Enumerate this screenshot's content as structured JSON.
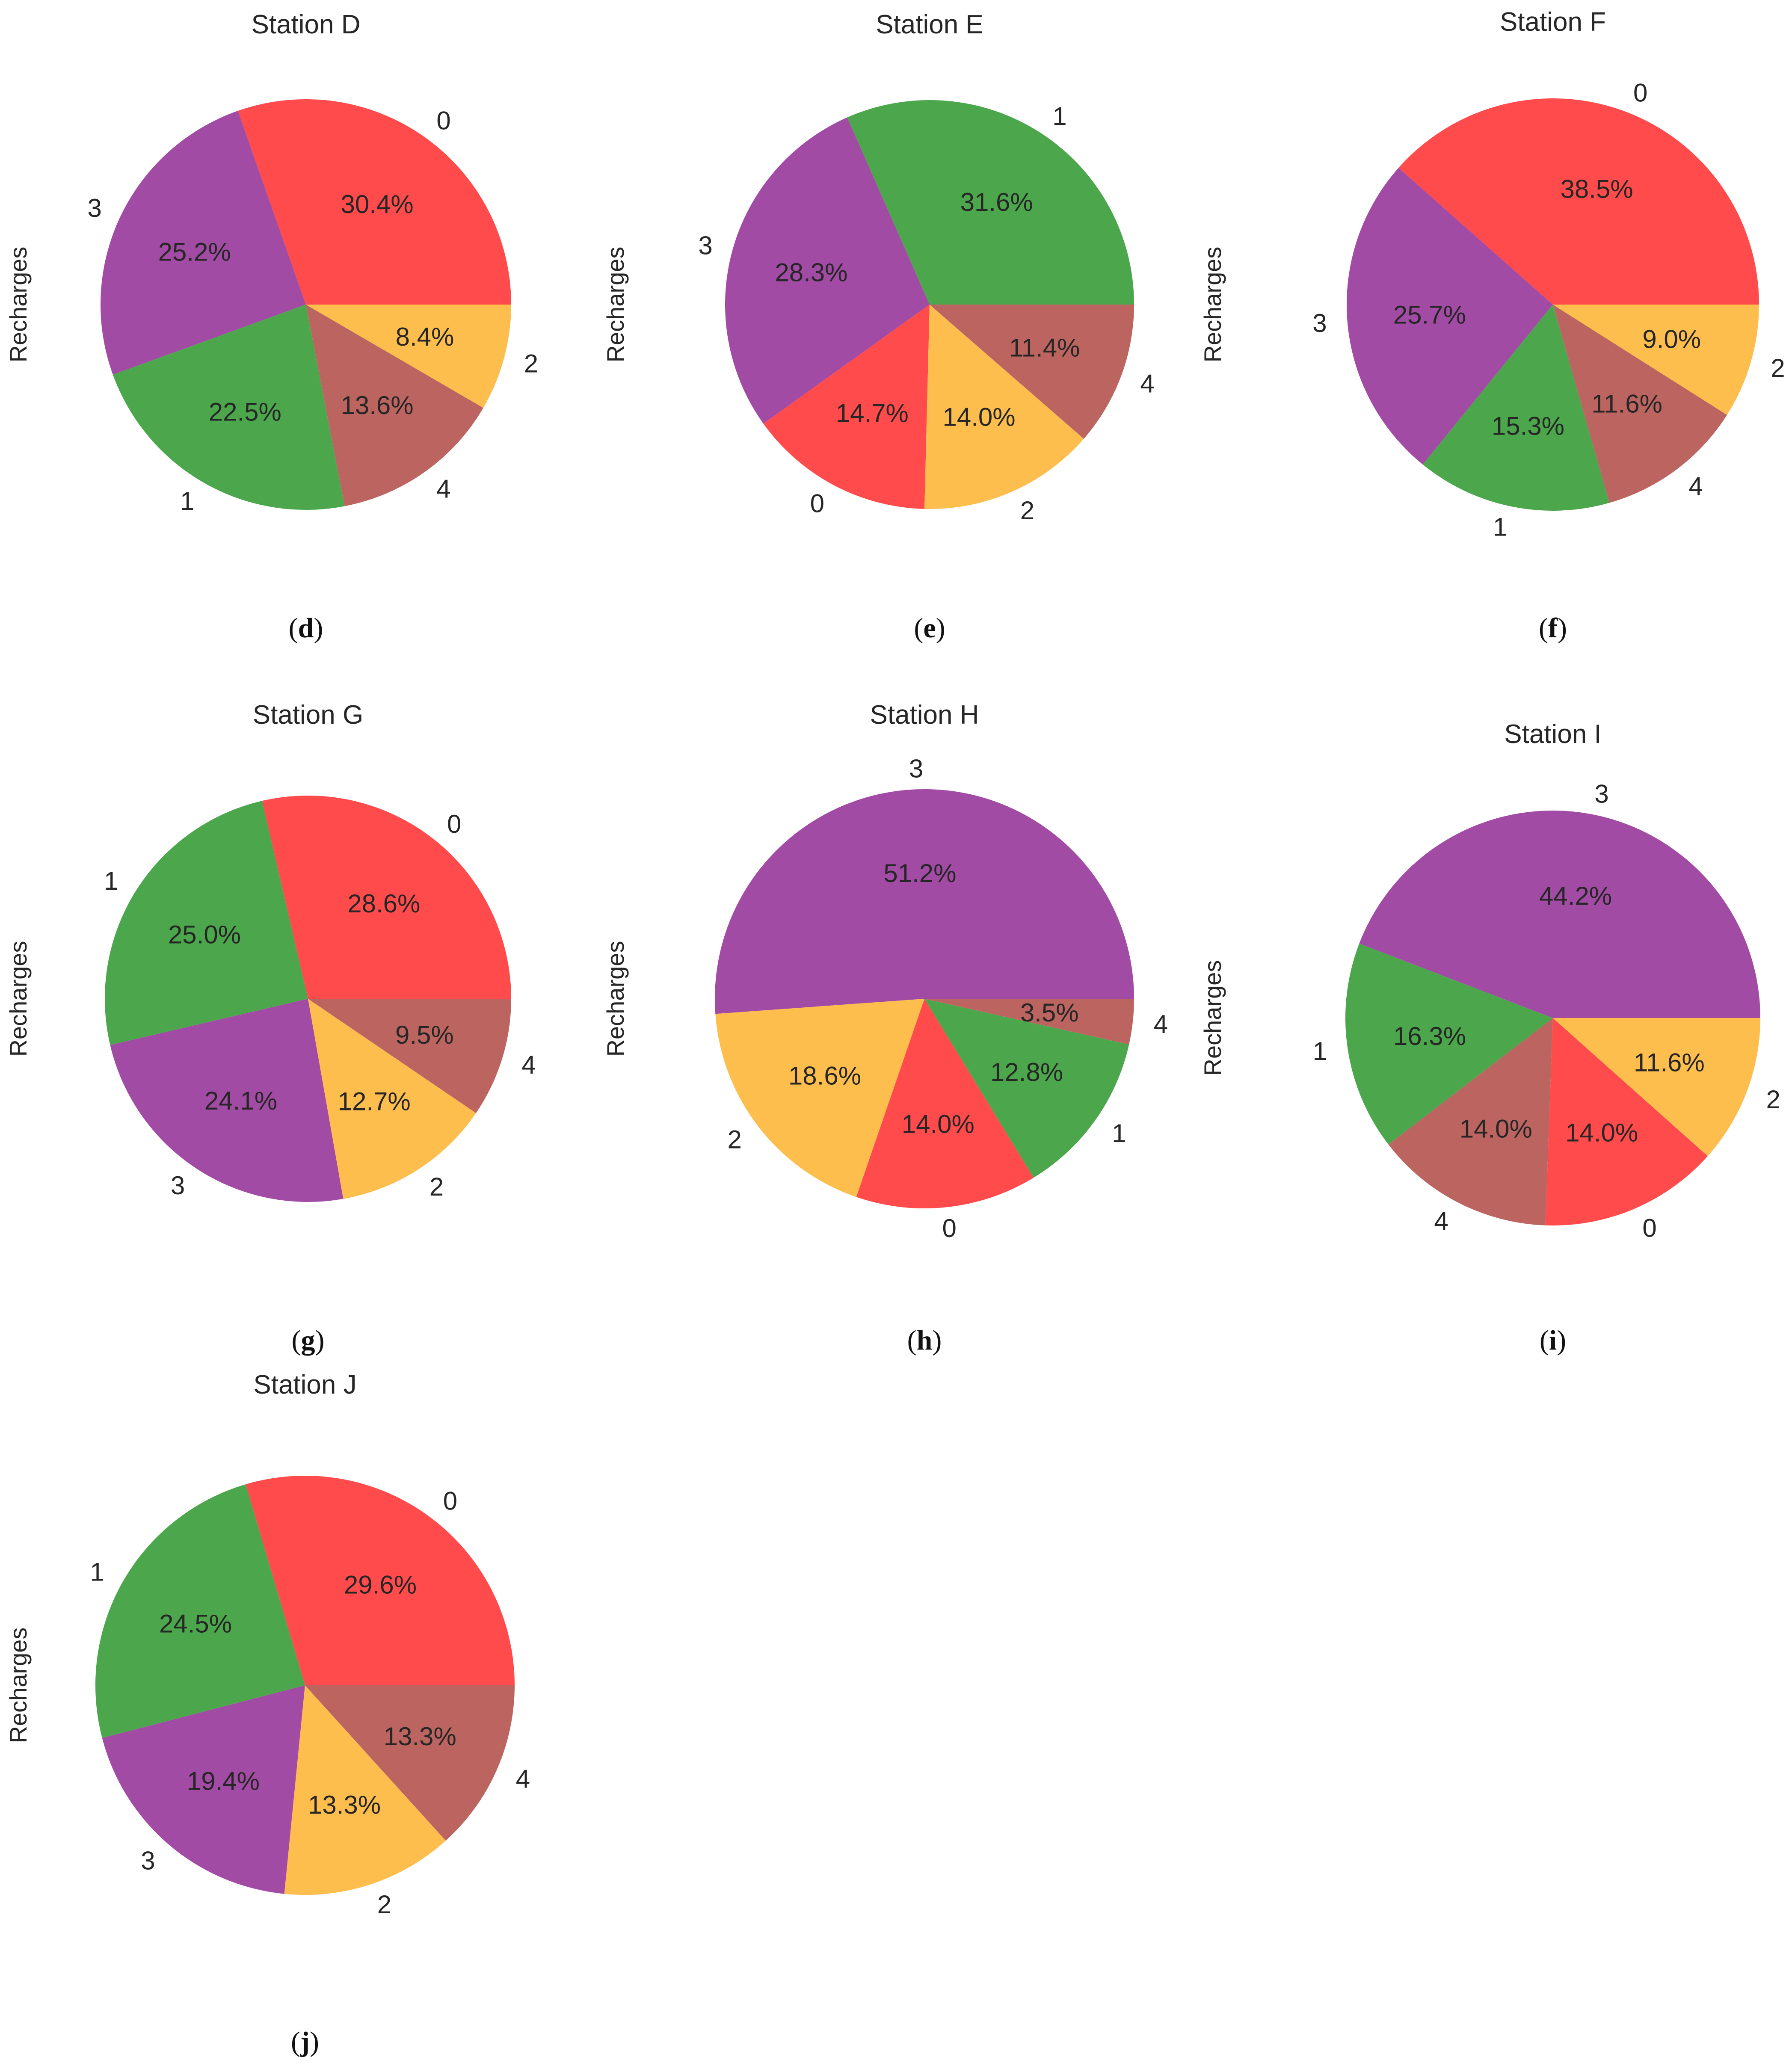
{
  "ylabel": "Recharges",
  "colors": {
    "0": "#ff4b4b",
    "1": "#4ca64c",
    "2": "#fdbe4e",
    "3": "#a24ba5",
    "4": "#bc6460"
  },
  "chart_data": [
    {
      "type": "pie",
      "title": "Station D",
      "caption": "d",
      "ylabel": "Recharges",
      "slices": [
        {
          "label": "0",
          "value": 30.4,
          "pct_label": "30.4%"
        },
        {
          "label": "3",
          "value": 25.2,
          "pct_label": "25.2%"
        },
        {
          "label": "1",
          "value": 22.5,
          "pct_label": "22.5%"
        },
        {
          "label": "4",
          "value": 13.6,
          "pct_label": "13.6%"
        },
        {
          "label": "2",
          "value": 8.4,
          "pct_label": "8.4%"
        }
      ]
    },
    {
      "type": "pie",
      "title": "Station E",
      "caption": "e",
      "ylabel": "Recharges",
      "slices": [
        {
          "label": "1",
          "value": 31.6,
          "pct_label": "31.6%"
        },
        {
          "label": "3",
          "value": 28.3,
          "pct_label": "28.3%"
        },
        {
          "label": "0",
          "value": 14.7,
          "pct_label": "14.7%"
        },
        {
          "label": "2",
          "value": 14.0,
          "pct_label": "14.0%"
        },
        {
          "label": "4",
          "value": 11.4,
          "pct_label": "11.4%"
        }
      ]
    },
    {
      "type": "pie",
      "title": "Station F",
      "caption": "f",
      "ylabel": "Recharges",
      "slices": [
        {
          "label": "0",
          "value": 38.5,
          "pct_label": "38.5%"
        },
        {
          "label": "3",
          "value": 25.7,
          "pct_label": "25.7%"
        },
        {
          "label": "1",
          "value": 15.3,
          "pct_label": "15.3%"
        },
        {
          "label": "4",
          "value": 11.6,
          "pct_label": "11.6%"
        },
        {
          "label": "2",
          "value": 9.0,
          "pct_label": "9.0%"
        }
      ]
    },
    {
      "type": "pie",
      "title": "Station G",
      "caption": "g",
      "ylabel": "Recharges",
      "slices": [
        {
          "label": "0",
          "value": 28.6,
          "pct_label": "28.6%"
        },
        {
          "label": "1",
          "value": 25.0,
          "pct_label": "25.0%"
        },
        {
          "label": "3",
          "value": 24.1,
          "pct_label": "24.1%"
        },
        {
          "label": "2",
          "value": 12.7,
          "pct_label": "12.7%"
        },
        {
          "label": "4",
          "value": 9.5,
          "pct_label": "9.5%"
        }
      ]
    },
    {
      "type": "pie",
      "title": "Station H",
      "caption": "h",
      "ylabel": "Recharges",
      "slices": [
        {
          "label": "3",
          "value": 51.2,
          "pct_label": "51.2%"
        },
        {
          "label": "2",
          "value": 18.6,
          "pct_label": "18.6%"
        },
        {
          "label": "0",
          "value": 14.0,
          "pct_label": "14.0%"
        },
        {
          "label": "1",
          "value": 12.8,
          "pct_label": "12.8%"
        },
        {
          "label": "4",
          "value": 3.5,
          "pct_label": "3.5%"
        }
      ]
    },
    {
      "type": "pie",
      "title": "Station I",
      "caption": "i",
      "ylabel": "Recharges",
      "slices": [
        {
          "label": "3",
          "value": 44.2,
          "pct_label": "44.2%"
        },
        {
          "label": "1",
          "value": 16.3,
          "pct_label": "16.3%"
        },
        {
          "label": "4",
          "value": 14.0,
          "pct_label": "14.0%"
        },
        {
          "label": "0",
          "value": 14.0,
          "pct_label": "14.0%"
        },
        {
          "label": "2",
          "value": 11.6,
          "pct_label": "11.6%"
        }
      ]
    },
    {
      "type": "pie",
      "title": "Station J",
      "caption": "j",
      "ylabel": "Recharges",
      "slices": [
        {
          "label": "0",
          "value": 29.6,
          "pct_label": "29.6%"
        },
        {
          "label": "1",
          "value": 24.5,
          "pct_label": "24.5%"
        },
        {
          "label": "3",
          "value": 19.4,
          "pct_label": "19.4%"
        },
        {
          "label": "2",
          "value": 13.3,
          "pct_label": "13.3%"
        },
        {
          "label": "4",
          "value": 13.3,
          "pct_label": "13.3%"
        }
      ]
    }
  ]
}
